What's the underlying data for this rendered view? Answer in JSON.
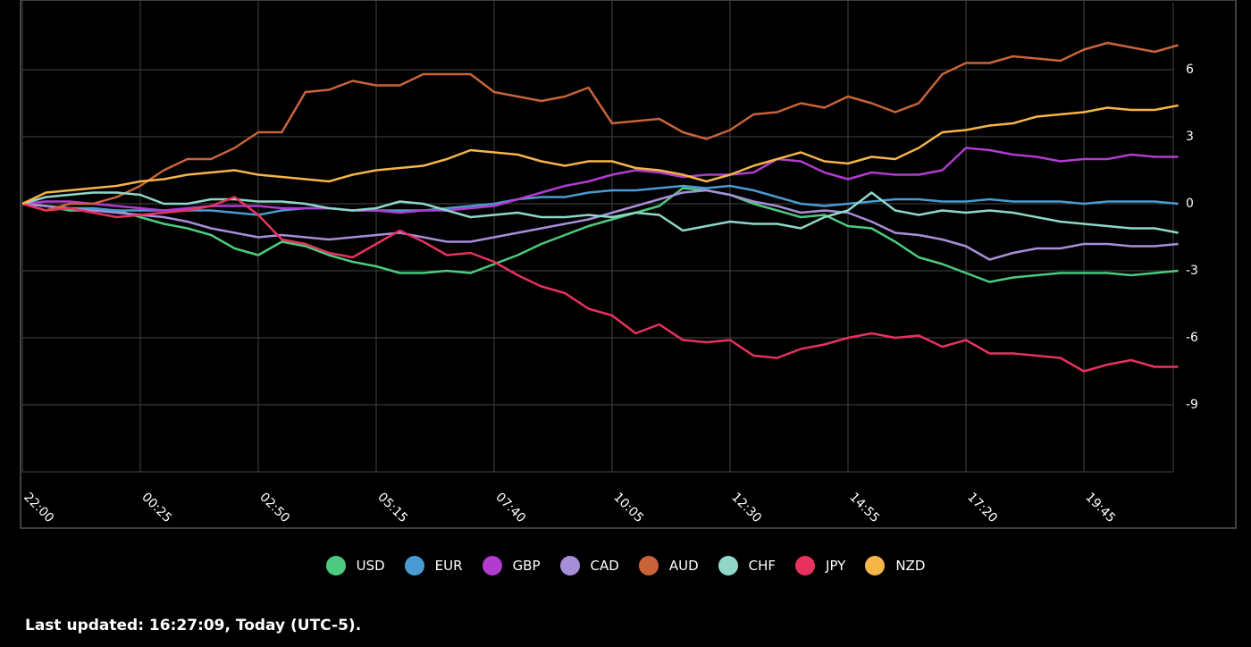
{
  "chart_data": {
    "type": "line",
    "categories": [
      "22:00",
      null,
      null,
      null,
      null,
      "00:25",
      null,
      null,
      null,
      null,
      "02:50",
      null,
      null,
      null,
      null,
      "05:15",
      null,
      null,
      null,
      null,
      "07:40",
      null,
      null,
      null,
      null,
      "10:05",
      null,
      null,
      null,
      null,
      "12:30",
      null,
      null,
      null,
      null,
      "14:55",
      null,
      null,
      null,
      null,
      "17:20",
      null,
      null,
      null,
      null,
      "19:45",
      null,
      null,
      null,
      null
    ],
    "ylim": [
      -12,
      9
    ],
    "yticks": [
      6,
      3,
      0,
      -3,
      -6,
      -9
    ],
    "grid": true,
    "series": [
      {
        "name": "USD",
        "color": "#4ccb7e",
        "values": [
          0,
          -0.1,
          -0.3,
          -0.3,
          -0.3,
          -0.6,
          -0.9,
          -1.1,
          -1.4,
          -2,
          -2.3,
          -1.7,
          -1.9,
          -2.3,
          -2.6,
          -2.8,
          -3.1,
          -3.1,
          -3,
          -3.1,
          -2.7,
          -2.3,
          -1.8,
          -1.4,
          -1,
          -0.7,
          -0.4,
          -0.1,
          0.7,
          0.6,
          0.4,
          0,
          -0.3,
          -0.6,
          -0.5,
          -1,
          -1.1,
          -1.7,
          -2.4,
          -2.7,
          -3.1,
          -3.5,
          -3.3,
          -3.2,
          -3.1,
          -3.1,
          -3.1,
          -3.2,
          -3.1,
          -3
        ]
      },
      {
        "name": "EUR",
        "color": "#4a9bd1",
        "values": [
          0,
          -0.1,
          -0.2,
          -0.2,
          -0.3,
          -0.3,
          -0.3,
          -0.3,
          -0.3,
          -0.4,
          -0.5,
          -0.3,
          -0.2,
          -0.2,
          -0.3,
          -0.3,
          -0.3,
          -0.3,
          -0.2,
          -0.1,
          0,
          0.2,
          0.3,
          0.3,
          0.5,
          0.6,
          0.6,
          0.7,
          0.8,
          0.7,
          0.8,
          0.6,
          0.3,
          0,
          -0.1,
          0,
          0.1,
          0.2,
          0.2,
          0.1,
          0.1,
          0.2,
          0.1,
          0.1,
          0.1,
          0,
          0.1,
          0.1,
          0.1,
          0
        ]
      },
      {
        "name": "GBP",
        "color": "#b13ccf",
        "values": [
          0,
          0.1,
          0.1,
          0,
          -0.1,
          -0.2,
          -0.3,
          -0.2,
          -0.1,
          -0.1,
          -0.1,
          -0.2,
          -0.2,
          -0.2,
          -0.3,
          -0.3,
          -0.4,
          -0.3,
          -0.3,
          -0.2,
          -0.1,
          0.2,
          0.5,
          0.8,
          1,
          1.3,
          1.5,
          1.4,
          1.2,
          1.3,
          1.3,
          1.4,
          2,
          1.9,
          1.4,
          1.1,
          1.4,
          1.3,
          1.3,
          1.5,
          2.5,
          2.4,
          2.2,
          2.1,
          1.9,
          2,
          2,
          2.2,
          2.1,
          2.1
        ]
      },
      {
        "name": "CAD",
        "color": "#a78ed8",
        "values": [
          0,
          -0.1,
          -0.2,
          -0.3,
          -0.4,
          -0.5,
          -0.6,
          -0.8,
          -1.1,
          -1.3,
          -1.5,
          -1.4,
          -1.5,
          -1.6,
          -1.5,
          -1.4,
          -1.3,
          -1.5,
          -1.7,
          -1.7,
          -1.5,
          -1.3,
          -1.1,
          -0.9,
          -0.7,
          -0.4,
          -0.1,
          0.2,
          0.5,
          0.6,
          0.4,
          0.1,
          -0.1,
          -0.4,
          -0.3,
          -0.4,
          -0.8,
          -1.3,
          -1.4,
          -1.6,
          -1.9,
          -2.5,
          -2.2,
          -2,
          -2,
          -1.8,
          -1.8,
          -1.9,
          -1.9,
          -1.8
        ]
      },
      {
        "name": "AUD",
        "color": "#c9643a",
        "values": [
          0,
          -0.3,
          0,
          0,
          0.3,
          0.8,
          1.5,
          2,
          2,
          2.5,
          3.2,
          3.2,
          5,
          5.1,
          5.5,
          5.3,
          5.3,
          5.8,
          5.8,
          5.8,
          5,
          4.8,
          4.6,
          4.8,
          5.2,
          3.6,
          3.7,
          3.8,
          3.2,
          2.9,
          3.3,
          4,
          4.1,
          4.5,
          4.3,
          4.8,
          4.5,
          4.1,
          4.5,
          5.8,
          6.3,
          6.3,
          6.6,
          6.5,
          6.4,
          6.9,
          7.2,
          7,
          6.8,
          7.1
        ]
      },
      {
        "name": "CHF",
        "color": "#8fd8c8",
        "values": [
          0,
          0.3,
          0.4,
          0.5,
          0.5,
          0.4,
          0,
          0,
          0.2,
          0.2,
          0.1,
          0.1,
          0,
          -0.2,
          -0.3,
          -0.2,
          0.1,
          0,
          -0.3,
          -0.6,
          -0.5,
          -0.4,
          -0.6,
          -0.6,
          -0.5,
          -0.6,
          -0.4,
          -0.5,
          -1.2,
          -1,
          -0.8,
          -0.9,
          -0.9,
          -1.1,
          -0.6,
          -0.3,
          0.5,
          -0.3,
          -0.5,
          -0.3,
          -0.4,
          -0.3,
          -0.4,
          -0.6,
          -0.8,
          -0.9,
          -1,
          -1.1,
          -1.1,
          -1.3
        ]
      },
      {
        "name": "JPY",
        "color": "#e7325f",
        "values": [
          0,
          -0.3,
          -0.2,
          -0.4,
          -0.6,
          -0.5,
          -0.4,
          -0.3,
          -0.1,
          0.3,
          -0.5,
          -1.6,
          -1.8,
          -2.2,
          -2.4,
          -1.8,
          -1.2,
          -1.7,
          -2.3,
          -2.2,
          -2.6,
          -3.2,
          -3.7,
          -4,
          -4.7,
          -5,
          -5.8,
          -5.4,
          -6.1,
          -6.2,
          -6.1,
          -6.8,
          -6.9,
          -6.5,
          -6.3,
          -6,
          -5.8,
          -6,
          -5.9,
          -6.4,
          -6.1,
          -6.7,
          -6.7,
          -6.8,
          -6.9,
          -7.5,
          -7.2,
          -7,
          -7.3,
          -7.3
        ]
      },
      {
        "name": "NZD",
        "color": "#f5b547",
        "values": [
          0,
          0.5,
          0.6,
          0.7,
          0.8,
          1,
          1.1,
          1.3,
          1.4,
          1.5,
          1.3,
          1.2,
          1.1,
          1,
          1.3,
          1.5,
          1.6,
          1.7,
          2,
          2.4,
          2.3,
          2.2,
          1.9,
          1.7,
          1.9,
          1.9,
          1.6,
          1.5,
          1.3,
          1,
          1.3,
          1.7,
          2,
          2.3,
          1.9,
          1.8,
          2.1,
          2,
          2.5,
          3.2,
          3.3,
          3.5,
          3.6,
          3.9,
          4,
          4.1,
          4.3,
          4.2,
          4.2,
          4.4
        ]
      }
    ]
  },
  "footer": {
    "text": "Last updated: 16:27:09, Today (UTC-5)."
  }
}
